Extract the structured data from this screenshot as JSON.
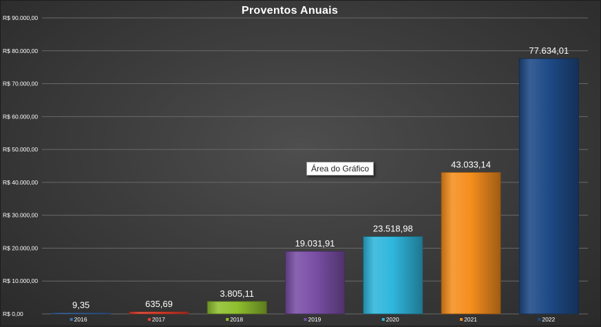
{
  "chart_data": {
    "type": "bar",
    "title": "Proventos Anuais",
    "categories": [
      "2016",
      "2017",
      "2018",
      "2019",
      "2020",
      "2021",
      "2022"
    ],
    "values": [
      9.35,
      635.69,
      3805.11,
      19031.91,
      23518.98,
      43033.14,
      77634.01
    ],
    "data_labels": [
      "9,35",
      "635,69",
      "3.805,11",
      "19.031,91",
      "23.518,98",
      "43.033,14",
      "77.634,01"
    ],
    "y_tick_values": [
      0,
      10000,
      20000,
      30000,
      40000,
      50000,
      60000,
      70000,
      80000,
      90000
    ],
    "y_tick_labels": [
      "R$ 0,00",
      "R$ 10.000,00",
      "R$ 20.000,00",
      "R$ 30.000,00",
      "R$ 40.000,00",
      "R$ 50.000,00",
      "R$ 60.000,00",
      "R$ 70.000,00",
      "R$ 80.000,00",
      "R$ 90.000,00"
    ],
    "ylim": [
      0,
      90000
    ],
    "grid": true,
    "legend_position": "bottom",
    "colors": [
      "#3f72b5",
      "#e8402c",
      "#8fbf2f",
      "#7a4fa6",
      "#2fb6dc",
      "#f58e1e",
      "#1e4a86"
    ]
  },
  "tooltip_text": "Área do Gráfico"
}
